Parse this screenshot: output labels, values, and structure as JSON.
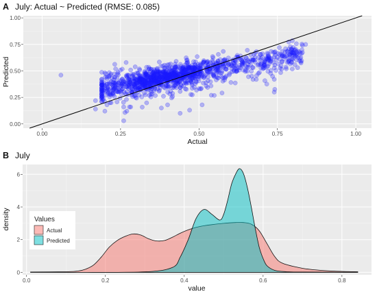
{
  "panels": [
    {
      "letter": "A",
      "title": "July: Actual ~ Predicted (RMSE: 0.085)",
      "xlabel": "Actual",
      "ylabel": "Predicted"
    },
    {
      "letter": "B",
      "title": "July",
      "xlabel": "value",
      "ylabel": "density",
      "legend": {
        "title": "Values",
        "items": [
          "Actual",
          "Predicted"
        ]
      }
    }
  ],
  "chart_data": [
    {
      "type": "scatter",
      "title": "July: Actual ~ Predicted (RMSE: 0.085)",
      "xlabel": "Actual",
      "ylabel": "Predicted",
      "xlim": [
        -0.06,
        1.05
      ],
      "ylim": [
        -0.04,
        1.02
      ],
      "xticks": [
        0.0,
        0.25,
        0.5,
        0.75,
        1.0
      ],
      "xtick_labels": [
        "0.00",
        "0.25",
        "0.50",
        "0.75",
        "1.00"
      ],
      "yticks": [
        0.0,
        0.25,
        0.5,
        0.75,
        1.0
      ],
      "ytick_labels": [
        "0.00",
        "0.25",
        "0.50",
        "0.75",
        "1.00"
      ],
      "grid": true,
      "point_color": "#1a1aff",
      "reference_line": {
        "slope": 1,
        "intercept": 0,
        "color": "#000000"
      },
      "notable_points": [
        {
          "x": 0.06,
          "y": 0.46
        },
        {
          "x": 0.17,
          "y": 0.22
        },
        {
          "x": 0.17,
          "y": 0.14
        },
        {
          "x": 0.2,
          "y": 0.12
        },
        {
          "x": 0.22,
          "y": 0.2
        },
        {
          "x": 0.26,
          "y": 0.03
        },
        {
          "x": 0.26,
          "y": 0.16
        },
        {
          "x": 0.27,
          "y": 0.12
        },
        {
          "x": 0.38,
          "y": 0.15
        },
        {
          "x": 0.4,
          "y": 0.18
        },
        {
          "x": 0.44,
          "y": 0.1
        },
        {
          "x": 0.47,
          "y": 0.13
        },
        {
          "x": 0.51,
          "y": 0.18
        },
        {
          "x": 0.74,
          "y": 0.3
        },
        {
          "x": 0.74,
          "y": 0.42
        },
        {
          "x": 0.79,
          "y": 0.65
        },
        {
          "x": 0.8,
          "y": 0.72
        },
        {
          "x": 0.82,
          "y": 0.68
        },
        {
          "x": 0.83,
          "y": 0.74
        },
        {
          "x": 0.84,
          "y": 0.75
        }
      ],
      "cloud": {
        "n_points": 1300,
        "x_range": [
          0.19,
          0.83
        ],
        "y_trend": {
          "intercept": 0.24,
          "slope": 0.51
        },
        "y_spread": 0.055
      }
    },
    {
      "type": "area",
      "title": "July",
      "xlabel": "value",
      "ylabel": "density",
      "xlim": [
        -0.01,
        0.875
      ],
      "ylim": [
        -0.15,
        6.6
      ],
      "xticks": [
        0.0,
        0.2,
        0.4,
        0.6,
        0.8
      ],
      "xtick_labels": [
        "0.0",
        "0.2",
        "0.4",
        "0.6",
        "0.8"
      ],
      "yticks": [
        0,
        2,
        4,
        6
      ],
      "ytick_labels": [
        "0",
        "2",
        "4",
        "6"
      ],
      "grid": true,
      "legend_position": "left",
      "series": [
        {
          "name": "Actual",
          "color": "#f8766d",
          "x": [
            0.01,
            0.1,
            0.13,
            0.15,
            0.17,
            0.19,
            0.21,
            0.23,
            0.25,
            0.27,
            0.29,
            0.31,
            0.33,
            0.35,
            0.37,
            0.39,
            0.41,
            0.43,
            0.45,
            0.47,
            0.5,
            0.53,
            0.55,
            0.57,
            0.59,
            0.61,
            0.63,
            0.65,
            0.7,
            0.75,
            0.8,
            0.84
          ],
          "y": [
            0.02,
            0.04,
            0.08,
            0.2,
            0.45,
            0.95,
            1.55,
            1.95,
            2.2,
            2.35,
            2.28,
            2.05,
            1.92,
            1.95,
            2.15,
            2.4,
            2.6,
            2.75,
            2.85,
            2.92,
            3.0,
            3.05,
            3.05,
            2.95,
            2.55,
            1.75,
            0.95,
            0.55,
            0.25,
            0.12,
            0.06,
            0.04
          ]
        },
        {
          "name": "Predicted",
          "color": "#00bfc4",
          "x": [
            0.01,
            0.12,
            0.3,
            0.37,
            0.39,
            0.41,
            0.43,
            0.45,
            0.47,
            0.49,
            0.5,
            0.51,
            0.52,
            0.53,
            0.54,
            0.55,
            0.56,
            0.57,
            0.58,
            0.59,
            0.6,
            0.61,
            0.63,
            0.66,
            0.7,
            0.84
          ],
          "y": [
            0.0,
            0.0,
            0.03,
            0.3,
            0.95,
            2.0,
            3.3,
            3.85,
            3.55,
            3.2,
            3.55,
            4.4,
            5.4,
            6.0,
            6.35,
            6.05,
            5.2,
            4.0,
            2.7,
            1.55,
            0.85,
            0.4,
            0.12,
            0.04,
            0.02,
            0.01
          ]
        }
      ]
    }
  ]
}
